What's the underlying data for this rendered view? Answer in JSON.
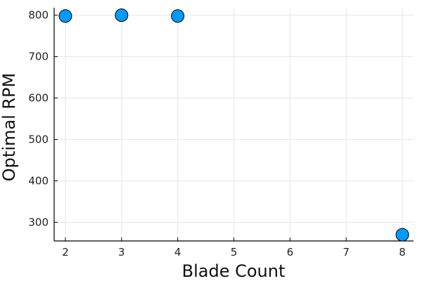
{
  "chart_data": {
    "type": "scatter",
    "xlabel": "Blade Count",
    "ylabel": "Optimal RPM",
    "xlim": [
      1.8,
      8.2
    ],
    "ylim": [
      255,
      818
    ],
    "xticks": [
      2,
      3,
      4,
      5,
      6,
      7,
      8
    ],
    "yticks": [
      300,
      400,
      500,
      600,
      700,
      800
    ],
    "grid": true,
    "legend": "none",
    "marker_color": "#009AFA",
    "series": [
      {
        "x": [
          2,
          3,
          4,
          8
        ],
        "y": [
          798,
          800,
          798,
          270
        ]
      }
    ]
  }
}
